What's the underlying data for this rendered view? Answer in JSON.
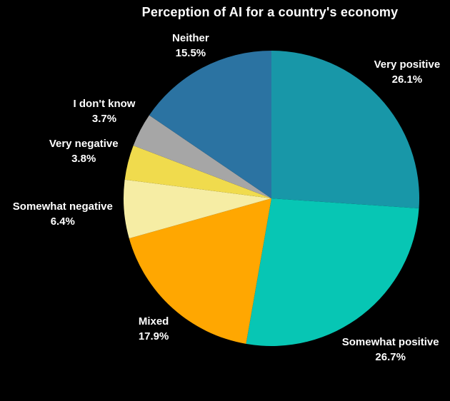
{
  "page": {
    "background": "#000000",
    "text_color": "#FFFFFF"
  },
  "chart_data": {
    "type": "pie",
    "title": "Perception of AI for a country's economy",
    "legend_position": "none",
    "labels_position": "outside",
    "start_angle_deg": 0,
    "direction": "clockwise",
    "slices": [
      {
        "label": "Very positive",
        "value": 26.1,
        "pct_label": "26.1%",
        "color": "#1897A8"
      },
      {
        "label": "Somewhat positive",
        "value": 26.7,
        "pct_label": "26.7%",
        "color": "#07C6B4"
      },
      {
        "label": "Mixed",
        "value": 17.9,
        "pct_label": "17.9%",
        "color": "#FFA701"
      },
      {
        "label": "Somewhat negative",
        "value": 6.4,
        "pct_label": "6.4%",
        "color": "#F6EDA4"
      },
      {
        "label": "Very negative",
        "value": 3.8,
        "pct_label": "3.8%",
        "color": "#F0DB4D"
      },
      {
        "label": "I don't know",
        "value": 3.7,
        "pct_label": "3.7%",
        "color": "#A6A6A6"
      },
      {
        "label": "Neither",
        "value": 15.5,
        "pct_label": "15.5%",
        "color": "#2B73A2"
      }
    ]
  }
}
